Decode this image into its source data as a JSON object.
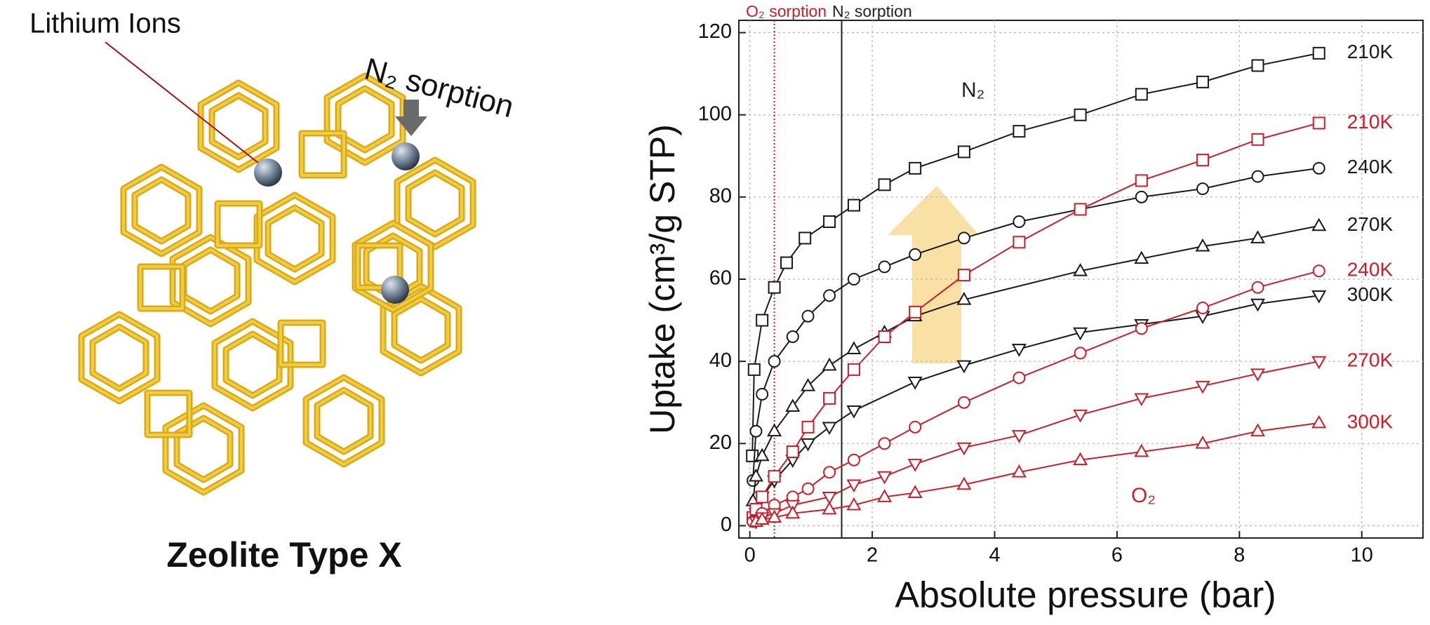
{
  "figure": {
    "label": "Zeolite Type X",
    "ion_label": "Lithium Ions",
    "sorption_label": "N₂ sorption"
  },
  "chart_data": {
    "type": "line",
    "xlabel": "Absolute pressure (bar)",
    "ylabel": "Uptake (cm³/g STP)",
    "xlim": [
      -0.18,
      11.0
    ],
    "ylim": [
      -3,
      123
    ],
    "xticks": [
      0,
      2,
      4,
      6,
      8,
      10
    ],
    "yticks": [
      0,
      20,
      40,
      60,
      80,
      100,
      120
    ],
    "grid": true,
    "reference_lines": [
      {
        "label": "O₂ sorption",
        "x": 0.4,
        "color": "#c8202a",
        "style": "dotted"
      },
      {
        "label": "N₂ sorption",
        "x": 1.5,
        "color": "#222222",
        "style": "solid"
      }
    ],
    "annotations": [
      {
        "text": "N₂",
        "color": "#222222"
      },
      {
        "text": "O₂",
        "color": "#c8202a"
      }
    ],
    "series": [
      {
        "name": "210K",
        "gas": "N₂",
        "color": "#1a1a1a",
        "marker": "square",
        "x": [
          0.04,
          0.07,
          0.2,
          0.4,
          0.6,
          0.9,
          1.3,
          1.7,
          2.2,
          2.7,
          3.5,
          4.4,
          5.4,
          6.4,
          7.4,
          8.3,
          9.3
        ],
        "values": [
          17,
          38,
          50,
          58,
          64,
          70,
          74,
          78,
          83,
          87,
          91,
          96,
          100,
          105,
          108,
          112,
          115
        ]
      },
      {
        "name": "240K",
        "gas": "N₂",
        "color": "#1a1a1a",
        "marker": "circle",
        "x": [
          0.05,
          0.1,
          0.2,
          0.4,
          0.7,
          0.95,
          1.3,
          1.7,
          2.2,
          2.7,
          3.5,
          4.4,
          5.4,
          6.4,
          7.4,
          8.3,
          9.3
        ],
        "values": [
          11,
          23,
          32,
          40,
          46,
          51,
          56,
          60,
          63,
          66,
          70,
          74,
          77,
          80,
          82,
          85,
          87
        ]
      },
      {
        "name": "270K",
        "gas": "N₂",
        "color": "#1a1a1a",
        "marker": "triangle-up",
        "x": [
          0.05,
          0.1,
          0.2,
          0.4,
          0.7,
          0.95,
          1.3,
          1.7,
          2.2,
          2.7,
          3.5,
          5.4,
          6.4,
          7.4,
          8.3,
          9.3
        ],
        "values": [
          6,
          12,
          17,
          23,
          29,
          34,
          39,
          43,
          47,
          51,
          55,
          62,
          65,
          68,
          70,
          73
        ]
      },
      {
        "name": "300K",
        "gas": "N₂",
        "color": "#1a1a1a",
        "marker": "triangle-down",
        "x": [
          0.1,
          0.2,
          0.4,
          0.7,
          0.95,
          1.3,
          1.7,
          2.7,
          3.5,
          4.4,
          5.4,
          6.4,
          7.4,
          8.3,
          9.3
        ],
        "values": [
          3,
          7,
          11,
          16,
          20,
          24,
          28,
          35,
          39,
          43,
          47,
          49,
          51,
          54,
          56
        ]
      },
      {
        "name": "210K",
        "gas": "O₂",
        "color": "#c8202a",
        "marker": "square",
        "x": [
          0.05,
          0.1,
          0.2,
          0.4,
          0.7,
          0.95,
          1.3,
          1.7,
          2.2,
          2.7,
          3.5,
          4.4,
          5.4,
          6.4,
          7.4,
          8.3,
          9.3
        ],
        "values": [
          2,
          4,
          7,
          12,
          18,
          24,
          31,
          38,
          46,
          52,
          61,
          69,
          77,
          84,
          89,
          94,
          98
        ]
      },
      {
        "name": "240K",
        "gas": "O₂",
        "color": "#c8202a",
        "marker": "circle",
        "x": [
          0.05,
          0.2,
          0.4,
          0.7,
          0.95,
          1.3,
          1.7,
          2.2,
          2.7,
          3.5,
          4.4,
          5.4,
          6.4,
          7.4,
          8.3,
          9.3
        ],
        "values": [
          1,
          3,
          5,
          7,
          9,
          13,
          16,
          20,
          24,
          30,
          36,
          42,
          48,
          53,
          58,
          62
        ]
      },
      {
        "name": "270K",
        "gas": "O₂",
        "color": "#c8202a",
        "marker": "triangle-down",
        "x": [
          0.1,
          0.2,
          0.4,
          0.7,
          1.3,
          1.7,
          2.2,
          2.7,
          3.5,
          4.4,
          5.4,
          6.4,
          7.4,
          8.3,
          9.3
        ],
        "values": [
          1,
          2,
          3,
          5,
          7,
          10,
          12,
          15,
          19,
          22,
          27,
          31,
          34,
          37,
          40
        ]
      },
      {
        "name": "300K",
        "gas": "O₂",
        "color": "#c8202a",
        "marker": "triangle-up",
        "x": [
          0.1,
          0.2,
          0.4,
          0.7,
          1.3,
          1.7,
          2.2,
          2.7,
          3.5,
          4.4,
          5.4,
          6.4,
          7.4,
          8.3,
          9.3
        ],
        "values": [
          1,
          1.5,
          2,
          3,
          4,
          5,
          7,
          8,
          10,
          13,
          16,
          18,
          20,
          23,
          25
        ]
      }
    ]
  }
}
